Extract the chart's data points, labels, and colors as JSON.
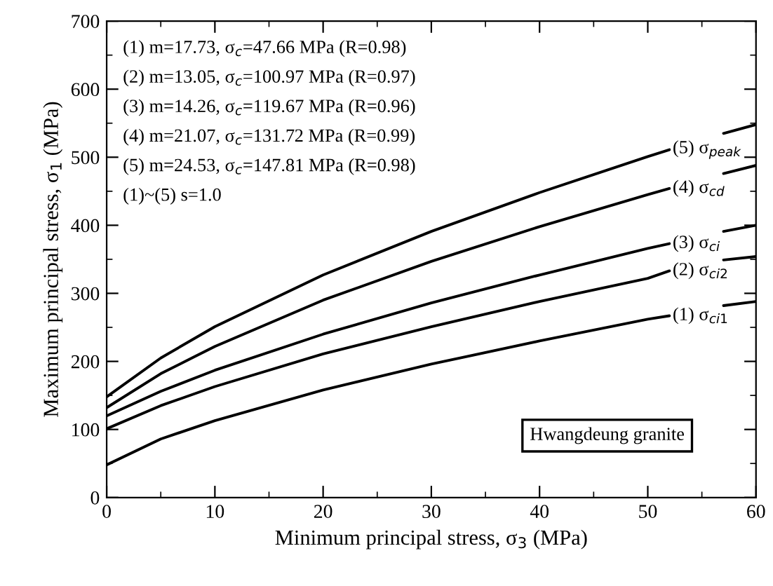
{
  "chart_data": {
    "type": "line",
    "xlabel": "Minimum principal stress, σ$_{3}$ (MPa)",
    "ylabel": "Maximum principal stress, σ$_{1}$ (MPa)",
    "x": [
      0,
      5,
      10,
      20,
      30,
      40,
      50,
      52,
      54,
      57,
      60
    ],
    "series": [
      {
        "name": "(1) σ$_{ci1}$",
        "color": "#000000",
        "values": [
          48,
          86,
          113,
          158,
          196,
          230,
          262,
          267,
          null,
          282,
          288
        ]
      },
      {
        "name": "(2) σ$_{ci2}$",
        "color": "#000000",
        "values": [
          101,
          135,
          163,
          211,
          251,
          288,
          322,
          333,
          null,
          349,
          354
        ]
      },
      {
        "name": "(3) σ$_{ci}$",
        "color": "#000000",
        "values": [
          120,
          156,
          187,
          240,
          286,
          327,
          366,
          373,
          null,
          391,
          400
        ]
      },
      {
        "name": "(4) σ$_{cd}$",
        "color": "#000000",
        "values": [
          132,
          182,
          222,
          290,
          347,
          398,
          445,
          454,
          null,
          476,
          488
        ]
      },
      {
        "name": "(5) σ$_{peak}$",
        "color": "#000000",
        "values": [
          148,
          205,
          251,
          327,
          391,
          448,
          501,
          511,
          null,
          535,
          548
        ]
      }
    ],
    "xlim": [
      0,
      60
    ],
    "xticks": [
      0,
      10,
      20,
      30,
      40,
      50,
      60
    ],
    "ylim": [
      0,
      700
    ],
    "yticks": [
      0,
      100,
      200,
      300,
      400,
      500,
      600,
      700
    ],
    "grid": false,
    "legend": "right",
    "marker": "none",
    "line_style": "solid",
    "annotations": [
      "(1) m=17.73, σ$_{c}$=47.66 MPa (R=0.98)",
      "(2) m=13.05, σ$_{c}$=100.97 MPa (R=0.97)",
      "(3) m=14.26, σ$_{c}$=119.67 MPa (R=0.96)",
      "(4) m=21.07, σ$_{c}$=131.72 MPa (R=0.99)",
      "(5) m=24.53, σ$_{c}$=147.81 MPa (R=0.98)",
      "(1)~(5) s=1.0",
      "Hwangdeung granite"
    ]
  }
}
